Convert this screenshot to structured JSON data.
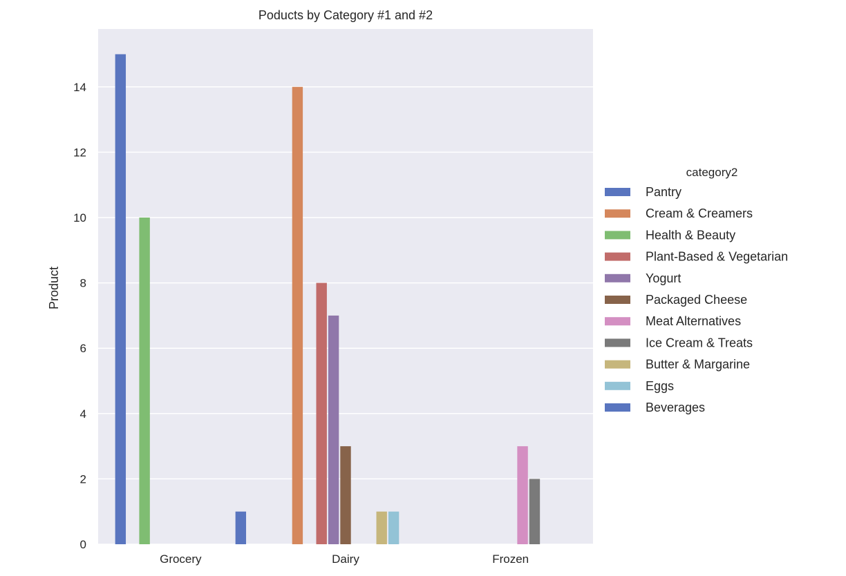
{
  "chart_data": {
    "type": "bar",
    "title": "Poducts by Category #1 and #2",
    "xlabel": "",
    "ylabel": "Product",
    "ylim": [
      0,
      15
    ],
    "yticks": [
      0,
      2,
      4,
      6,
      8,
      10,
      12,
      14
    ],
    "grid": true,
    "legend_title": "category2",
    "legend_position": "right",
    "categories": [
      "Grocery",
      "Dairy",
      "Frozen"
    ],
    "series": [
      {
        "name": "Pantry",
        "color": "#5975bf",
        "values": [
          15,
          0,
          0
        ]
      },
      {
        "name": "Cream & Creamers",
        "color": "#d5875c",
        "values": [
          0,
          14,
          0
        ]
      },
      {
        "name": "Health & Beauty",
        "color": "#7fbd72",
        "values": [
          10,
          0,
          0
        ]
      },
      {
        "name": "Plant-Based & Vegetarian",
        "color": "#c16c6a",
        "values": [
          0,
          8,
          0
        ]
      },
      {
        "name": "Yogurt",
        "color": "#9077aa",
        "values": [
          0,
          7,
          0
        ]
      },
      {
        "name": "Packaged Cheese",
        "color": "#87634a",
        "values": [
          0,
          3,
          0
        ]
      },
      {
        "name": "Meat Alternatives",
        "color": "#d48fc2",
        "values": [
          0,
          0,
          3
        ]
      },
      {
        "name": "Ice Cream & Treats",
        "color": "#7a7a7a",
        "values": [
          0,
          0,
          2
        ]
      },
      {
        "name": "Butter & Margarine",
        "color": "#c6b67c",
        "values": [
          0,
          1,
          0
        ]
      },
      {
        "name": "Eggs",
        "color": "#93c3d6",
        "values": [
          0,
          1,
          0
        ]
      },
      {
        "name": "Beverages",
        "color": "#5975bf",
        "values": [
          1,
          0,
          0
        ]
      }
    ]
  }
}
